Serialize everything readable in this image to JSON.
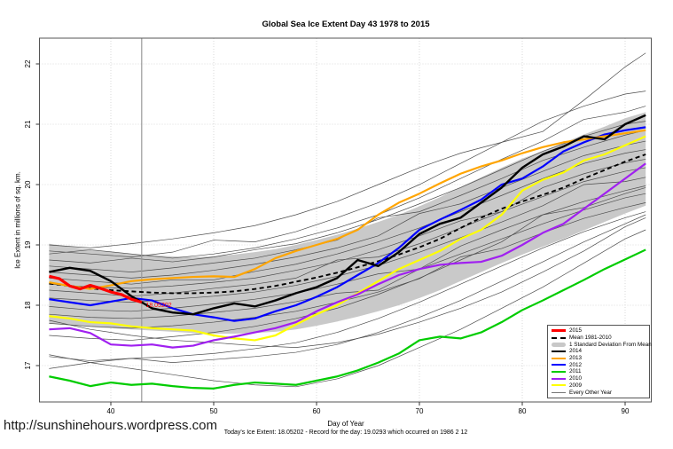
{
  "page": {
    "title": "Global Sea Ice Extent Day 43 1978 to 2015",
    "url_text": "http://sunshinehours.wordpress.com"
  },
  "chart_data": {
    "type": "line",
    "title": "Global Sea Ice Extent Day 43 1978 to 2015",
    "xlabel": "Day of Year",
    "ylabel": "Ice Extent in millions of sq. km.",
    "caption": "Today's Ice Extent: 18.05202  - Record for the day: 19.0293 which occurred on 1986 2 12",
    "today_ice_extent": 18.05202,
    "record_for_day": 19.0293,
    "record_date": "1986 2 12",
    "xlim": [
      33,
      93
    ],
    "ylim": [
      16.4,
      22.45
    ],
    "xticks": [
      40,
      50,
      60,
      70,
      80,
      90
    ],
    "yticks": [
      17,
      18,
      19,
      20,
      21,
      22
    ],
    "grid": "dotted",
    "vline_x": 43,
    "annotation": {
      "text": "18.05202",
      "day": 43.4,
      "value": 18.0,
      "color": "#ff0000"
    },
    "days": [
      34,
      36,
      38,
      40,
      42,
      44,
      46,
      48,
      50,
      52,
      54,
      56,
      58,
      60,
      62,
      64,
      66,
      68,
      70,
      72,
      74,
      76,
      78,
      80,
      82,
      84,
      86,
      88,
      90,
      92
    ],
    "mean_1981_2010": {
      "label": "Mean 1981-2010",
      "color": "#000000",
      "values": [
        18.36,
        18.32,
        18.28,
        18.25,
        18.23,
        18.21,
        18.2,
        18.2,
        18.21,
        18.23,
        18.27,
        18.32,
        18.39,
        18.46,
        18.54,
        18.63,
        18.73,
        18.84,
        18.96,
        19.1,
        19.28,
        19.45,
        19.6,
        19.72,
        19.83,
        19.95,
        20.1,
        20.24,
        20.38,
        20.5
      ]
    },
    "std_band": {
      "label": "1 Standard Deviation From Mean",
      "color": "#c9c9c9",
      "top": [
        19.02,
        18.97,
        18.92,
        18.88,
        18.85,
        18.83,
        18.81,
        18.8,
        18.81,
        18.84,
        18.88,
        18.93,
        19.0,
        19.08,
        19.17,
        19.27,
        19.38,
        19.5,
        19.64,
        19.79,
        19.96,
        20.12,
        20.28,
        20.43,
        20.56,
        20.69,
        20.83,
        20.96,
        21.1,
        21.2
      ],
      "bottom": [
        17.7,
        17.67,
        17.64,
        17.62,
        17.6,
        17.58,
        17.56,
        17.54,
        17.53,
        17.53,
        17.54,
        17.56,
        17.6,
        17.66,
        17.73,
        17.81,
        17.9,
        18.0,
        18.12,
        18.25,
        18.4,
        18.55,
        18.7,
        18.84,
        18.97,
        19.1,
        19.24,
        19.38,
        19.52,
        19.65
      ]
    },
    "series": [
      {
        "name": "2015",
        "color": "#ff0000",
        "width": 3.2,
        "days": [
          34,
          35,
          36,
          37,
          38,
          39,
          40,
          41,
          42,
          43
        ],
        "values": [
          18.48,
          18.44,
          18.32,
          18.27,
          18.33,
          18.28,
          18.22,
          18.18,
          18.1,
          18.05
        ]
      },
      {
        "name": "2014",
        "color": "#000000",
        "width": 2.4,
        "values": [
          18.55,
          18.62,
          18.57,
          18.4,
          18.15,
          17.95,
          17.88,
          17.85,
          17.95,
          18.03,
          17.98,
          18.08,
          18.2,
          18.3,
          18.45,
          18.75,
          18.65,
          18.88,
          19.18,
          19.35,
          19.45,
          19.7,
          19.95,
          20.28,
          20.5,
          20.63,
          20.8,
          20.75,
          21.0,
          21.15
        ]
      },
      {
        "name": "2013",
        "color": "#ffa500",
        "width": 2.2,
        "values": [
          18.38,
          18.32,
          18.27,
          18.33,
          18.4,
          18.43,
          18.45,
          18.47,
          18.48,
          18.47,
          18.6,
          18.78,
          18.9,
          19.0,
          19.1,
          19.25,
          19.5,
          19.7,
          19.85,
          20.02,
          20.18,
          20.3,
          20.4,
          20.52,
          20.62,
          20.7,
          20.75,
          20.8,
          20.85,
          20.9
        ]
      },
      {
        "name": "2012",
        "color": "#0000ff",
        "width": 2.2,
        "values": [
          18.1,
          18.05,
          18.0,
          18.06,
          18.12,
          18.08,
          17.95,
          17.85,
          17.8,
          17.74,
          17.78,
          17.9,
          18.0,
          18.14,
          18.3,
          18.5,
          18.7,
          18.95,
          19.25,
          19.42,
          19.58,
          19.75,
          20.0,
          20.1,
          20.3,
          20.55,
          20.7,
          20.83,
          20.9,
          20.95
        ]
      },
      {
        "name": "2011",
        "color": "#00cc00",
        "width": 2.2,
        "values": [
          16.82,
          16.75,
          16.66,
          16.72,
          16.68,
          16.7,
          16.66,
          16.63,
          16.62,
          16.68,
          16.72,
          16.7,
          16.68,
          16.75,
          16.82,
          16.92,
          17.05,
          17.2,
          17.42,
          17.48,
          17.45,
          17.55,
          17.72,
          17.92,
          18.08,
          18.25,
          18.42,
          18.6,
          18.76,
          18.92
        ]
      },
      {
        "name": "2010",
        "color": "#a020f0",
        "width": 2.2,
        "values": [
          17.6,
          17.62,
          17.54,
          17.35,
          17.33,
          17.35,
          17.3,
          17.33,
          17.42,
          17.48,
          17.55,
          17.62,
          17.72,
          17.9,
          18.05,
          18.18,
          18.35,
          18.5,
          18.6,
          18.67,
          18.7,
          18.72,
          18.82,
          19.0,
          19.2,
          19.35,
          19.6,
          19.85,
          20.1,
          20.35
        ]
      },
      {
        "name": "2009",
        "color": "#ffff00",
        "width": 2.2,
        "values": [
          17.82,
          17.78,
          17.72,
          17.7,
          17.65,
          17.62,
          17.6,
          17.58,
          17.5,
          17.45,
          17.42,
          17.5,
          17.68,
          17.85,
          18.0,
          18.2,
          18.4,
          18.6,
          18.75,
          18.9,
          19.1,
          19.25,
          19.5,
          19.9,
          20.08,
          20.2,
          20.4,
          20.5,
          20.65,
          20.8
        ]
      }
    ],
    "every_other_year": {
      "label": "Every Other Year",
      "color": "#4d4d4d",
      "days": [
        34,
        38,
        42,
        46,
        50,
        54,
        58,
        62,
        66,
        70,
        74,
        78,
        82,
        86,
        90,
        92
      ],
      "lines": [
        [
          19.0,
          18.95,
          19.02,
          19.1,
          19.2,
          19.32,
          19.5,
          19.72,
          20.0,
          20.28,
          20.52,
          20.7,
          20.88,
          21.4,
          21.95,
          22.18
        ],
        [
          18.9,
          18.85,
          18.8,
          18.88,
          19.08,
          19.05,
          19.22,
          19.45,
          19.7,
          20.0,
          20.35,
          20.7,
          21.05,
          21.3,
          21.5,
          21.55
        ],
        [
          18.85,
          18.92,
          18.85,
          18.78,
          18.85,
          18.95,
          19.1,
          19.28,
          19.5,
          19.78,
          20.1,
          20.42,
          20.72,
          21.08,
          21.2,
          21.3
        ],
        [
          18.75,
          18.7,
          18.78,
          18.72,
          18.8,
          18.92,
          19.02,
          19.2,
          19.42,
          19.68,
          19.95,
          20.25,
          20.55,
          20.8,
          21.0,
          21.05
        ],
        [
          18.65,
          18.6,
          18.55,
          18.62,
          18.7,
          18.78,
          18.92,
          19.08,
          19.45,
          19.55,
          19.82,
          20.1,
          20.4,
          20.62,
          20.82,
          20.9
        ],
        [
          18.55,
          18.5,
          18.45,
          18.5,
          18.58,
          18.68,
          18.8,
          18.95,
          19.15,
          19.52,
          19.68,
          19.95,
          20.22,
          20.48,
          20.65,
          20.72
        ],
        [
          18.45,
          18.4,
          18.35,
          18.42,
          18.42,
          18.56,
          18.68,
          18.85,
          19.05,
          19.28,
          19.55,
          19.82,
          20.1,
          20.35,
          20.52,
          20.58
        ],
        [
          18.35,
          18.3,
          18.28,
          18.32,
          18.38,
          18.45,
          18.58,
          18.72,
          18.92,
          19.15,
          19.4,
          19.55,
          19.95,
          20.18,
          20.36,
          20.42
        ],
        [
          18.25,
          18.2,
          18.15,
          18.2,
          18.28,
          18.35,
          18.45,
          18.75,
          18.8,
          19.02,
          19.28,
          19.55,
          19.8,
          20.05,
          20.22,
          20.28
        ],
        [
          18.12,
          18.08,
          18.05,
          18.1,
          18.15,
          18.22,
          18.33,
          18.48,
          18.66,
          18.88,
          19.12,
          19.38,
          19.65,
          20.0,
          20.05,
          20.12
        ],
        [
          17.98,
          17.92,
          17.9,
          17.95,
          18.02,
          18.1,
          18.2,
          18.35,
          18.52,
          18.6,
          18.98,
          19.25,
          19.5,
          19.72,
          19.9,
          19.98
        ],
        [
          17.85,
          17.8,
          17.78,
          17.82,
          17.88,
          17.95,
          18.06,
          18.2,
          18.25,
          18.6,
          18.85,
          19.1,
          19.35,
          19.58,
          19.78,
          19.85
        ],
        [
          17.7,
          17.65,
          17.62,
          17.66,
          17.72,
          17.8,
          17.9,
          18.05,
          18.22,
          18.44,
          18.8,
          18.94,
          19.2,
          19.44,
          19.62,
          19.7
        ],
        [
          17.5,
          17.45,
          17.42,
          17.48,
          17.55,
          17.65,
          17.78,
          17.95,
          18.18,
          18.45,
          18.75,
          19.05,
          19.5,
          19.62,
          19.85,
          19.95
        ],
        [
          16.95,
          17.05,
          17.12,
          17.15,
          17.2,
          17.28,
          17.38,
          17.55,
          17.78,
          18.05,
          18.35,
          18.65,
          18.95,
          19.22,
          19.45,
          19.55
        ],
        [
          17.18,
          17.05,
          16.95,
          16.85,
          16.75,
          16.68,
          16.65,
          16.78,
          17.0,
          17.3,
          17.6,
          17.95,
          18.3,
          18.7,
          19.1,
          19.25
        ],
        [
          17.75,
          17.6,
          17.5,
          17.42,
          17.38,
          17.33,
          17.3,
          17.38,
          17.52,
          17.72,
          17.95,
          18.22,
          18.55,
          18.9,
          19.3,
          19.45
        ],
        [
          17.15,
          17.08,
          17.12,
          17.05,
          17.1,
          17.15,
          17.22,
          17.35,
          17.55,
          17.8,
          18.08,
          18.4,
          18.72,
          19.05,
          19.35,
          19.5
        ]
      ]
    }
  },
  "legend": {
    "items": [
      {
        "label": "2015",
        "swatch": "thick",
        "color": "#ff0000"
      },
      {
        "label": "Mean 1981-2010",
        "swatch": "dashed",
        "color": "#000000"
      },
      {
        "label": "1 Standard Deviation From Mean",
        "swatch": "band",
        "color": "#c8c8c8"
      },
      {
        "label": "2014",
        "swatch": "line",
        "color": "#000000"
      },
      {
        "label": "2013",
        "swatch": "line",
        "color": "#ffa500"
      },
      {
        "label": "2012",
        "swatch": "line",
        "color": "#0000ff"
      },
      {
        "label": "2011",
        "swatch": "line",
        "color": "#00cc00"
      },
      {
        "label": "2010",
        "swatch": "line",
        "color": "#a020f0"
      },
      {
        "label": "2009",
        "swatch": "line",
        "color": "#ffff00"
      },
      {
        "label": "Every Other Year",
        "swatch": "thin",
        "color": "#777777"
      }
    ]
  }
}
